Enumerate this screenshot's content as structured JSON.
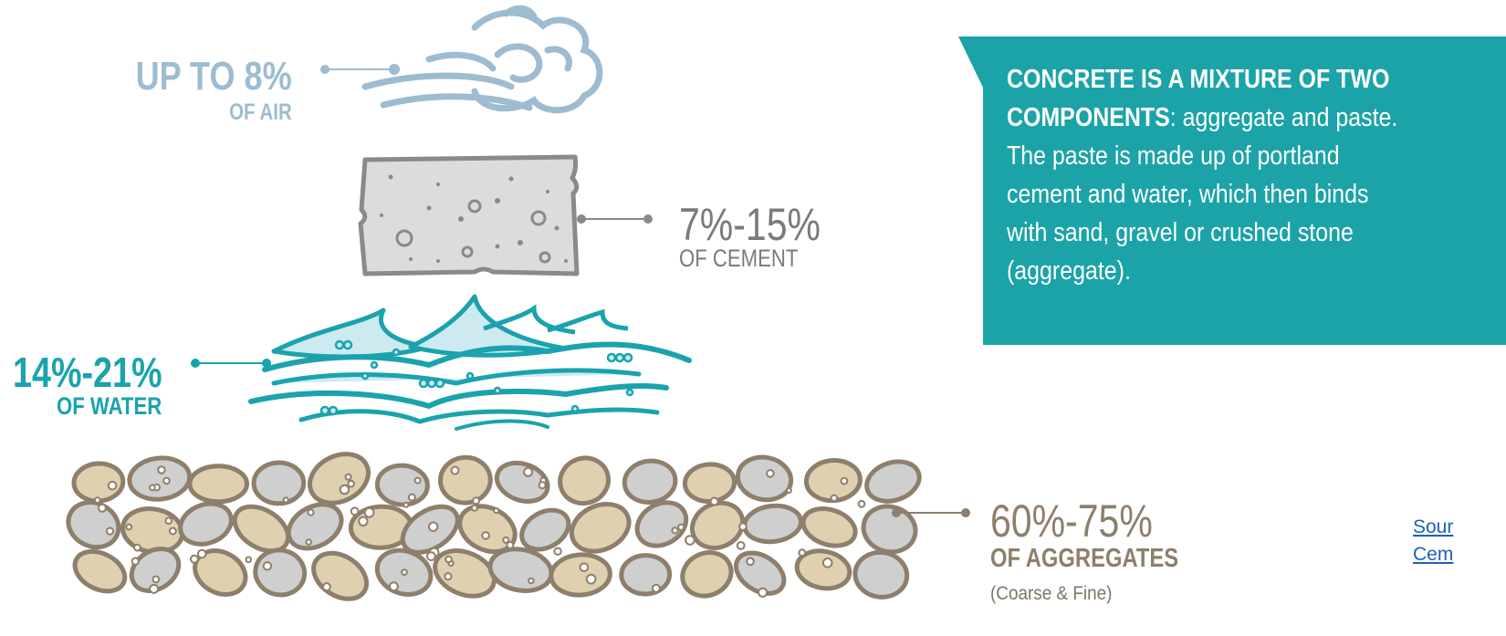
{
  "components": {
    "air": {
      "pct": "UP TO 8%",
      "sub": "OF AIR"
    },
    "cement": {
      "pct": "7%-15%",
      "sub": "OF CEMENT"
    },
    "water": {
      "pct": "14%-21%",
      "sub": "OF WATER"
    },
    "aggregates": {
      "pct": "60%-75%",
      "sub": "OF AGGREGATES",
      "note": "(Coarse & Fine)"
    }
  },
  "info": {
    "heading_line1": "CONCRETE IS A MIXTURE OF TWO",
    "heading_line2": "COMPONENTS",
    "line2_rest": ": aggregate and paste.",
    "line3": "The paste is made up of portland",
    "line4": "cement and water, which then binds",
    "line5": "with  sand, gravel or crushed stone",
    "line6": "(aggregate)."
  },
  "source": {
    "line1": "Sour",
    "line2": "Cem"
  },
  "colors": {
    "teal": "#1ba3a8",
    "air": "#9dbcd0",
    "cement_fill": "#dcdcdc",
    "cement_edge": "#8a8a8a",
    "sand": "#dfd0b0",
    "stone": "#cfcfcf",
    "outline": "#8e7f6c"
  }
}
